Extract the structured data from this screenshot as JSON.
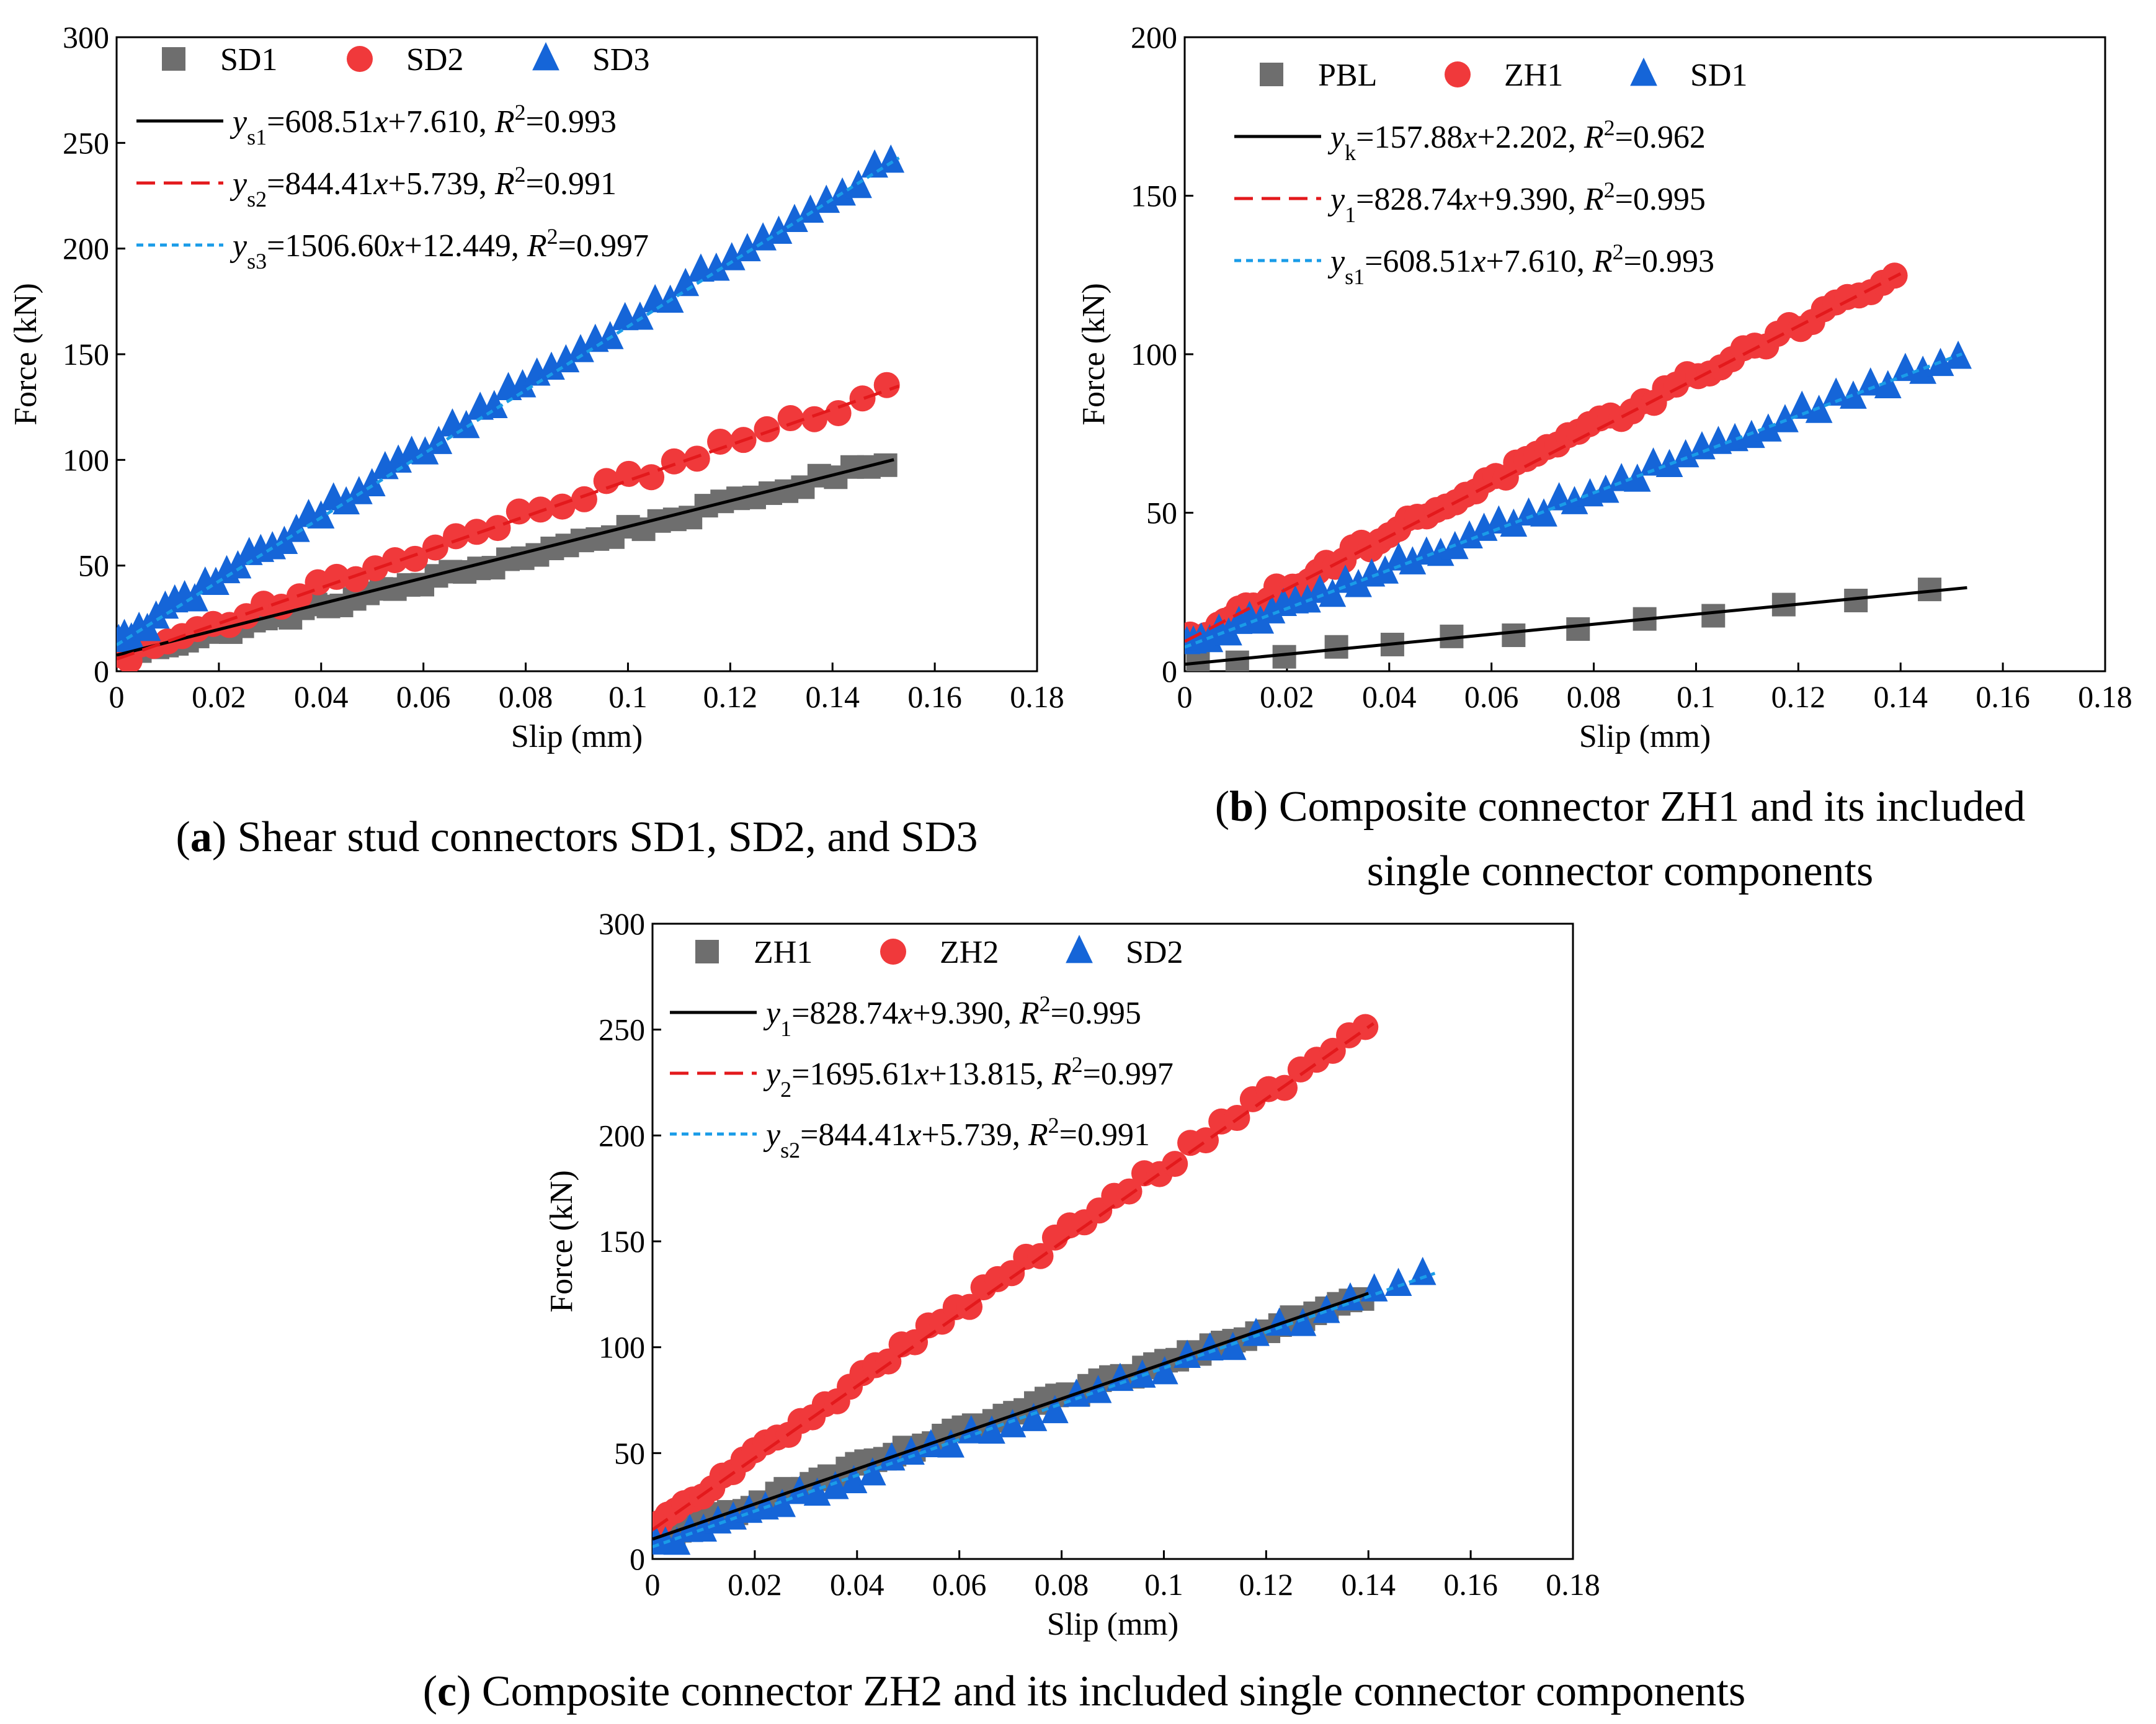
{
  "colors": {
    "gray": "#6e6e6e",
    "red": "#f0393b",
    "blue": "#1565d8",
    "fit_black": "#000000",
    "fit_red": "#e3191c",
    "fit_blue": "#1a9ce8"
  },
  "chart_data": [
    {
      "id": "a",
      "type": "scatter",
      "caption": {
        "letter": "a",
        "text": "Shear stud connectors SD1, SD2, and SD3",
        "text_line2": ""
      },
      "xlabel": "Slip (mm)",
      "ylabel": "Force (kN)",
      "xlim": [
        0,
        0.18
      ],
      "ylim": [
        0,
        300
      ],
      "x_ticks": [
        "0",
        "0.02",
        "0.04",
        "0.06",
        "0.08",
        "0.1",
        "0.12",
        "0.14",
        "0.16",
        "0.18"
      ],
      "y_ticks": [
        "0",
        "50",
        "100",
        "150",
        "200",
        "250",
        "300"
      ],
      "grid": false,
      "legend_position": "top-left",
      "series": [
        {
          "name": "SD1",
          "marker": "square",
          "color": "gray",
          "x_max": 0.152,
          "k": 608.51,
          "b": 7.61,
          "curv": -0.08,
          "n": 58,
          "deviation": 2.0
        },
        {
          "name": "SD2",
          "marker": "circle",
          "color": "red",
          "x_max": 0.153,
          "k": 844.41,
          "b": 5.739,
          "curv": 0.02,
          "n": 40,
          "deviation": 3.0
        },
        {
          "name": "SD3",
          "marker": "triangle",
          "color": "blue",
          "x_max": 0.153,
          "k": 1506.6,
          "b": 12.449,
          "curv": 0.05,
          "n": 60,
          "deviation": 3.0
        }
      ],
      "fits": [
        {
          "sym": "y",
          "sub": "s1",
          "eq": "=608.51",
          "var": "x",
          "const": "+7.610, ",
          "r2_lhs": "R",
          "r2_sup": "2",
          "r2_val": "=0.993",
          "color": "fit_black",
          "dash": "solid",
          "k": 608.51,
          "b": 7.61,
          "x_end": 0.152
        },
        {
          "sym": "y",
          "sub": "s2",
          "eq": "=844.41",
          "var": "x",
          "const": "+5.739, ",
          "r2_lhs": "R",
          "r2_sup": "2",
          "r2_val": "=0.991",
          "color": "fit_red",
          "dash": "dash",
          "k": 844.41,
          "b": 5.739,
          "x_end": 0.153
        },
        {
          "sym": "y",
          "sub": "s3",
          "eq": "=1506.60",
          "var": "x",
          "const": "+12.449, ",
          "r2_lhs": "R",
          "r2_sup": "2",
          "r2_val": "=0.997",
          "color": "fit_blue",
          "dash": "dot",
          "k": 1506.6,
          "b": 12.449,
          "x_end": 0.153
        }
      ]
    },
    {
      "id": "b",
      "type": "scatter",
      "caption": {
        "letter": "b",
        "text": "Composite connector ZH1 and its included",
        "text_line2": "single connector components"
      },
      "xlabel": "Slip (mm)",
      "ylabel": "Force (kN)",
      "xlim": [
        0,
        0.18
      ],
      "ylim": [
        0,
        200
      ],
      "x_ticks": [
        "0",
        "0.02",
        "0.04",
        "0.06",
        "0.08",
        "0.1",
        "0.12",
        "0.14",
        "0.16",
        "0.18"
      ],
      "y_ticks": [
        "0",
        "50",
        "100",
        "150",
        "200"
      ],
      "grid": false,
      "legend_position": "top-left",
      "series": [
        {
          "name": "PBL",
          "marker": "square",
          "color": "gray",
          "x_max": 0.153,
          "k": 157.88,
          "b": 2.202,
          "curv": -0.02,
          "n": 13,
          "deviation": 1.0
        },
        {
          "name": "ZH1",
          "marker": "circle",
          "color": "red",
          "x_max": 0.14,
          "k": 828.74,
          "b": 9.39,
          "curv": 0.04,
          "n": 75,
          "deviation": 2.0
        },
        {
          "name": "SD1",
          "marker": "triangle",
          "color": "blue",
          "x_max": 0.153,
          "k": 608.51,
          "b": 7.61,
          "curv": 0.03,
          "n": 55,
          "deviation": 2.0
        }
      ],
      "fits": [
        {
          "sym": "y",
          "sub": "k",
          "eq": "=157.88",
          "var": "x",
          "const": "+2.202, ",
          "r2_lhs": "R",
          "r2_sup": "2",
          "r2_val": "=0.962",
          "color": "fit_black",
          "dash": "solid",
          "k": 157.88,
          "b": 2.202,
          "x_end": 0.153
        },
        {
          "sym": "y",
          "sub": "1",
          "eq": "=828.74",
          "var": "x",
          "const": "+9.390, ",
          "r2_lhs": "R",
          "r2_sup": "2",
          "r2_val": "=0.995",
          "color": "fit_red",
          "dash": "dash",
          "k": 828.74,
          "b": 9.39,
          "x_end": 0.14
        },
        {
          "sym": "y",
          "sub": "s1",
          "eq": "=608.51",
          "var": "x",
          "const": "+7.610, ",
          "r2_lhs": "R",
          "r2_sup": "2",
          "r2_val": "=0.993",
          "color": "fit_blue",
          "dash": "dot",
          "k": 608.51,
          "b": 7.61,
          "x_end": 0.152
        }
      ]
    },
    {
      "id": "c",
      "type": "scatter",
      "caption": {
        "letter": "c",
        "text": "Composite connector ZH2 and its included single connector components",
        "text_line2": ""
      },
      "xlabel": "Slip (mm)",
      "ylabel": "Force (kN)",
      "xlim": [
        0,
        0.18
      ],
      "ylim": [
        0,
        300
      ],
      "x_ticks": [
        "0",
        "0.02",
        "0.04",
        "0.06",
        "0.08",
        "0.1",
        "0.12",
        "0.14",
        "0.16",
        "0.18"
      ],
      "y_ticks": [
        "0",
        "50",
        "100",
        "150",
        "200",
        "250",
        "300"
      ],
      "grid": false,
      "legend_position": "top-left",
      "series": [
        {
          "name": "ZH1",
          "marker": "square",
          "color": "gray",
          "x_max": 0.14,
          "k": 828.74,
          "b": 9.39,
          "curv": 0.02,
          "n": 75,
          "deviation": 2.0
        },
        {
          "name": "ZH2",
          "marker": "circle",
          "color": "red",
          "x_max": 0.141,
          "k": 1695.61,
          "b": 13.815,
          "curv": 0.05,
          "n": 55,
          "deviation": 3.0
        },
        {
          "name": "SD2",
          "marker": "triangle",
          "color": "blue",
          "x_max": 0.153,
          "k": 844.41,
          "b": 5.739,
          "curv": -0.02,
          "n": 40,
          "deviation": 2.5
        }
      ],
      "fits": [
        {
          "sym": "y",
          "sub": "1",
          "eq": "=828.74",
          "var": "x",
          "const": "+9.390, ",
          "r2_lhs": "R",
          "r2_sup": "2",
          "r2_val": "=0.995",
          "color": "fit_black",
          "dash": "solid",
          "k": 828.74,
          "b": 9.39,
          "x_end": 0.14
        },
        {
          "sym": "y",
          "sub": "2",
          "eq": "=1695.61",
          "var": "x",
          "const": "+13.815, ",
          "r2_lhs": "R",
          "r2_sup": "2",
          "r2_val": "=0.997",
          "color": "fit_red",
          "dash": "dash",
          "k": 1695.61,
          "b": 13.815,
          "x_end": 0.141
        },
        {
          "sym": "y",
          "sub": "s2",
          "eq": "=844.41",
          "var": "x",
          "const": "+5.739, ",
          "r2_lhs": "R",
          "r2_sup": "2",
          "r2_val": "=0.991",
          "color": "fit_blue",
          "dash": "dot",
          "k": 844.41,
          "b": 5.739,
          "x_end": 0.153
        }
      ]
    }
  ]
}
